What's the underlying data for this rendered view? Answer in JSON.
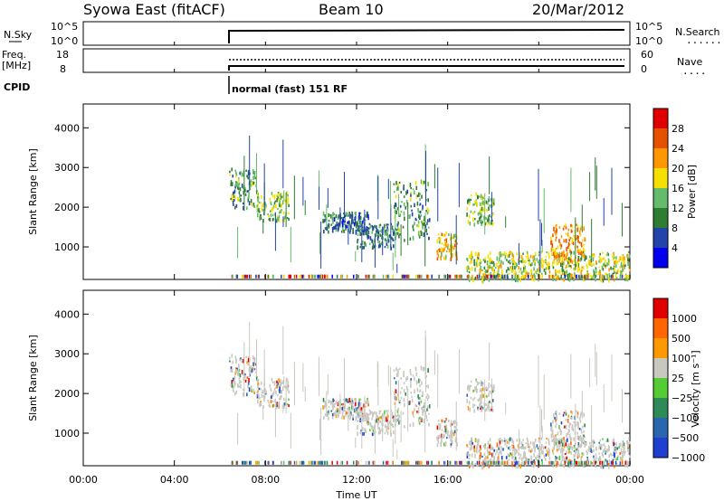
{
  "header": {
    "station": "Syowa East (fitACF)",
    "beam": "Beam 10",
    "date": "20/Mar/2012"
  },
  "nsky_panel": {
    "left_label": "N.Sky",
    "left_top": "10^5",
    "left_bottom": "10^0",
    "right_top": "10^5",
    "right_bottom": "10^0",
    "right_label": "N.Search",
    "right_dots": "........"
  },
  "freq_panel": {
    "left_label_1": "Freq.",
    "left_label_2": "[MHz]",
    "left_top": "18",
    "left_bottom": "8",
    "right_top": "60",
    "right_bottom": "0",
    "right_label": "Nave",
    "right_dots": "...."
  },
  "cpid": {
    "label": "CPID",
    "mode": "normal (fast) 151 RF"
  },
  "x_axis": {
    "title": "Time UT",
    "ticks": [
      "00:00",
      "04:00",
      "08:00",
      "12:00",
      "16:00",
      "20:00",
      "00:00"
    ]
  },
  "power_panel": {
    "ylabel": "Slant Range [km]",
    "yticks": [
      "1000",
      "2000",
      "3000",
      "4000"
    ],
    "colorbar_title": "Power [dB]",
    "colorbar_ticks": [
      "4",
      "8",
      "12",
      "16",
      "20",
      "24",
      "28"
    ],
    "colors": [
      "#0000ee",
      "#2244aa",
      "#2e7d32",
      "#66bb6a",
      "#f5e000",
      "#ff9800",
      "#e65100",
      "#e00000"
    ]
  },
  "velocity_panel": {
    "ylabel": "Slant Range [km]",
    "yticks": [
      "1000",
      "2000",
      "3000",
      "4000"
    ],
    "colorbar_title": "Velocity [m s⁻¹]",
    "colorbar_ticks": [
      "1000",
      "500",
      "100",
      "25",
      "−25",
      "−100",
      "−500",
      "−1000"
    ],
    "colors": [
      "#1e3fd0",
      "#2a66b0",
      "#2e8b57",
      "#55cc33",
      "#c8c8c0",
      "#ff9900",
      "#ff6600",
      "#e00000"
    ]
  },
  "chart_data": [
    {
      "type": "heatmap",
      "title": "Power",
      "xlabel": "Time UT",
      "ylabel": "Slant Range [km]",
      "xlim": [
        "00:00",
        "24:00"
      ],
      "ylim": [
        180,
        4600
      ],
      "colorbar": "Power [dB]",
      "colorbar_range": [
        0,
        30
      ],
      "data_start": "06:30",
      "regions": [
        {
          "t_start": 6.4,
          "t_end": 7.6,
          "r_start": 2000,
          "r_end": 3000,
          "level_db": 10
        },
        {
          "t_start": 7.6,
          "t_end": 9.0,
          "r_start": 1700,
          "r_end": 2400,
          "level_db": 12
        },
        {
          "t_start": 10.5,
          "t_end": 12.5,
          "r_start": 1400,
          "r_end": 1900,
          "level_db": 6
        },
        {
          "t_start": 12.0,
          "t_end": 13.6,
          "r_start": 1000,
          "r_end": 1600,
          "level_db": 8
        },
        {
          "t_start": 13.6,
          "t_end": 15.2,
          "r_start": 1200,
          "r_end": 2700,
          "level_db": 10
        },
        {
          "t_start": 15.5,
          "t_end": 16.4,
          "r_start": 700,
          "r_end": 1400,
          "level_db": 18
        },
        {
          "t_start": 16.8,
          "t_end": 18.0,
          "r_start": 1600,
          "r_end": 2400,
          "level_db": 12
        },
        {
          "t_start": 16.8,
          "t_end": 24.0,
          "r_start": 180,
          "r_end": 900,
          "level_db": 14
        },
        {
          "t_start": 20.5,
          "t_end": 22.0,
          "r_start": 700,
          "r_end": 1600,
          "level_db": 20
        }
      ]
    },
    {
      "type": "heatmap",
      "title": "Velocity",
      "xlabel": "Time UT",
      "ylabel": "Slant Range [km]",
      "xlim": [
        "00:00",
        "24:00"
      ],
      "ylim": [
        180,
        4600
      ],
      "colorbar": "Velocity [m s⁻¹]",
      "colorbar_range": [
        -1000,
        1000
      ],
      "data_start": "06:30"
    }
  ]
}
